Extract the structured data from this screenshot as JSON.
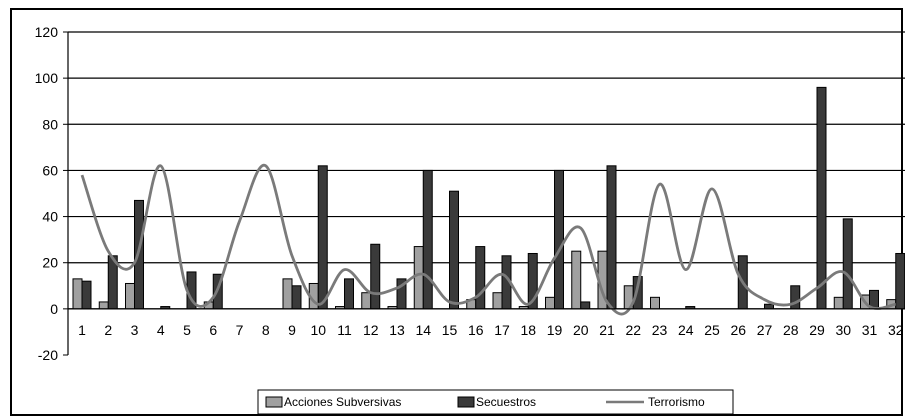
{
  "chart_data": {
    "type": "bar",
    "categories": [
      "1",
      "2",
      "3",
      "4",
      "5",
      "6",
      "7",
      "8",
      "9",
      "10",
      "11",
      "12",
      "13",
      "14",
      "15",
      "16",
      "17",
      "18",
      "19",
      "20",
      "21",
      "22",
      "23",
      "24",
      "25",
      "26",
      "27",
      "28",
      "29",
      "30",
      "31",
      "32"
    ],
    "series": [
      {
        "name": "Acciones Subversivas",
        "type": "bar",
        "color": "#a0a0a0",
        "values": [
          13,
          3,
          11,
          0,
          0,
          3,
          0,
          0,
          13,
          11,
          1,
          7,
          1,
          27,
          0,
          4,
          7,
          1,
          5,
          25,
          25,
          10,
          5,
          0,
          0,
          0,
          0,
          0,
          0,
          5,
          6,
          4
        ]
      },
      {
        "name": "Secuestros",
        "type": "bar",
        "color": "#3a3a3a",
        "values": [
          12,
          23,
          47,
          1,
          16,
          15,
          0,
          0,
          10,
          62,
          13,
          28,
          13,
          60,
          51,
          27,
          23,
          24,
          60,
          3,
          62,
          14,
          0,
          1,
          0,
          23,
          2,
          10,
          96,
          39,
          8,
          24
        ]
      },
      {
        "name": "Terrorismo",
        "type": "line",
        "color": "#7a7a7a",
        "values": [
          58,
          25,
          20,
          62,
          8,
          5,
          38,
          62,
          23,
          2,
          17,
          7,
          9,
          15,
          3,
          5,
          15,
          2,
          22,
          35,
          3,
          3,
          54,
          17,
          52,
          15,
          4,
          2,
          9,
          16,
          1,
          2
        ]
      }
    ],
    "ylim": [
      -20,
      120
    ],
    "yticks": [
      "-20",
      "0",
      "20",
      "40",
      "60",
      "80",
      "100",
      "120"
    ],
    "grid": true,
    "legend_position": "bottom"
  }
}
